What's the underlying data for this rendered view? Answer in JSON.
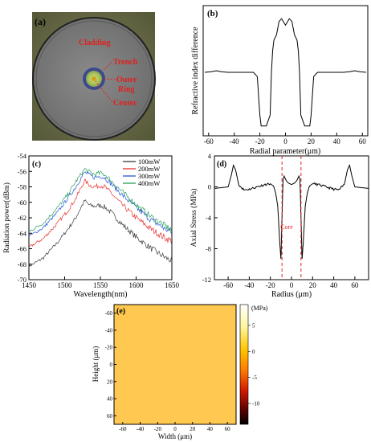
{
  "panels": {
    "a": {
      "label": "(a)",
      "annotations": [
        "Cladding",
        "Trench",
        "Outer",
        "Ring",
        "Center"
      ]
    },
    "b": {
      "label": "(b)",
      "xlabel": "Radial parameter(μm)",
      "ylabel": "Refractive index difference",
      "xticks": [
        "-60",
        "-40",
        "-20",
        "0",
        "20",
        "40",
        "60"
      ]
    },
    "c": {
      "label": "(c)",
      "xlabel": "Wavelength(nm)",
      "ylabel": "Radiation power(dBm)",
      "xticks": [
        "1450",
        "1500",
        "1550",
        "1600",
        "1650"
      ],
      "yticks": [
        "-54",
        "-56",
        "-58",
        "-60",
        "-62",
        "-64",
        "-66",
        "-68",
        "-70"
      ],
      "legend": [
        "100mW",
        "200mW",
        "300mW",
        "400mW"
      ]
    },
    "d": {
      "label": "(d)",
      "xlabel": "Radius (μm)",
      "ylabel": "Axial Stress (MPa)",
      "xticks": [
        "-60",
        "-40",
        "-20",
        "0",
        "20",
        "40",
        "60"
      ],
      "yticks": [
        "4",
        "0",
        "-4",
        "-8",
        "-12"
      ],
      "annotation": "Core"
    },
    "e": {
      "label": "(e)",
      "xlabel": "Width (μm)",
      "ylabel": "Height (μm)",
      "xticks": [
        "-60",
        "-40",
        "-20",
        "0",
        "20",
        "40",
        "60"
      ],
      "yticks": [
        "-60",
        "-40",
        "-20",
        "0",
        "20",
        "40",
        "60"
      ],
      "colorbar_unit": "(MPa)",
      "colorbar_ticks": [
        "5",
        "0",
        "-5",
        "-10"
      ]
    }
  },
  "colors": {
    "s100": "#3a3a3a",
    "s200": "#e8302c",
    "s300": "#2a55d8",
    "s400": "#28a05a",
    "annot": "#e22020"
  },
  "chart_data": [
    {
      "type": "line",
      "panel": "b",
      "xlabel": "Radial parameter(μm)",
      "ylabel": "Refractive index difference",
      "xlim": [
        -63,
        63
      ],
      "series": [
        {
          "x": [
            -63,
            -58,
            -54,
            -50,
            -45,
            -40,
            -35,
            -30,
            -25,
            -22,
            -20,
            -19,
            -18,
            -15,
            -12,
            -11,
            -10,
            -9,
            -7,
            -5,
            -3,
            0,
            3,
            5,
            7,
            9,
            10,
            11,
            12,
            15,
            18,
            19,
            20,
            22,
            25,
            30,
            35,
            40,
            45,
            50,
            54,
            58,
            63
          ],
          "y": [
            0.0,
            0.01,
            0.03,
            0.01,
            0.0,
            0.0,
            0.0,
            0.0,
            0.0,
            -0.08,
            -0.8,
            -1.0,
            -1.0,
            -1.0,
            -0.8,
            0.0,
            0.4,
            0.6,
            0.7,
            0.95,
            1.0,
            0.88,
            1.0,
            0.95,
            0.7,
            0.6,
            0.4,
            0.0,
            -0.8,
            -1.0,
            -1.0,
            -1.0,
            -0.8,
            -0.08,
            0.0,
            0.0,
            0.0,
            0.0,
            0.0,
            0.01,
            0.03,
            0.01,
            0.0
          ]
        }
      ]
    },
    {
      "type": "line",
      "panel": "c",
      "xlabel": "Wavelength(nm)",
      "ylabel": "Radiation power(dBm)",
      "xlim": [
        1450,
        1650
      ],
      "ylim": [
        -70,
        -54
      ],
      "x": [
        1450,
        1470,
        1490,
        1505,
        1515,
        1522,
        1528,
        1535,
        1542,
        1550,
        1556,
        1565,
        1580,
        1600,
        1620,
        1640,
        1650
      ],
      "series": [
        {
          "name": "100mW",
          "values": [
            -68.3,
            -67.2,
            -65.2,
            -63.4,
            -62.1,
            -60.8,
            -59.8,
            -60.4,
            -60.5,
            -60.4,
            -60.6,
            -61.3,
            -62.8,
            -64.5,
            -65.9,
            -67.1,
            -67.6
          ]
        },
        {
          "name": "200mW",
          "values": [
            -65.8,
            -64.7,
            -62.7,
            -61.0,
            -59.6,
            -58.3,
            -57.2,
            -57.8,
            -58.0,
            -57.8,
            -58.0,
            -58.8,
            -60.3,
            -62.0,
            -63.4,
            -64.6,
            -65.0
          ]
        },
        {
          "name": "300mW",
          "values": [
            -64.4,
            -63.3,
            -61.3,
            -59.4,
            -58.1,
            -57.0,
            -56.1,
            -56.5,
            -56.8,
            -56.6,
            -56.8,
            -57.6,
            -59.0,
            -60.7,
            -62.2,
            -63.4,
            -63.9
          ]
        },
        {
          "name": "400mW",
          "values": [
            -63.8,
            -62.7,
            -60.7,
            -58.9,
            -57.4,
            -56.5,
            -55.7,
            -56.1,
            -56.4,
            -56.2,
            -56.4,
            -57.2,
            -58.6,
            -60.3,
            -61.8,
            -63.0,
            -63.6
          ]
        }
      ]
    },
    {
      "type": "line",
      "panel": "d",
      "xlabel": "Radius (μm)",
      "ylabel": "Axial Stress (MPa)",
      "xlim": [
        -73,
        73
      ],
      "ylim": [
        -12,
        4
      ],
      "series": [
        {
          "x": [
            -73,
            -66,
            -60,
            -57,
            -55,
            -53,
            -50,
            -45,
            -40,
            -35,
            -30,
            -25,
            -20,
            -17,
            -15,
            -13,
            -12,
            -11,
            -10,
            -9,
            -8,
            -7,
            -5,
            -3,
            0,
            3,
            5,
            7,
            8,
            9,
            10,
            11,
            12,
            13,
            15,
            17,
            20,
            25,
            30,
            35,
            40,
            45,
            50,
            53,
            55,
            57,
            60,
            66,
            73
          ],
          "y": [
            -0.2,
            -0.1,
            0.0,
            1.5,
            2.8,
            2.2,
            0.3,
            -0.4,
            -0.3,
            -0.1,
            0.1,
            0.3,
            0.4,
            0.1,
            -0.8,
            -2.5,
            -5.0,
            -7.5,
            -9.3,
            -4.0,
            1.0,
            1.4,
            0.8,
            0.5,
            0.3,
            0.5,
            0.8,
            1.4,
            1.0,
            -4.0,
            -9.3,
            -7.5,
            -5.0,
            -2.5,
            -0.8,
            0.1,
            0.4,
            0.3,
            0.1,
            -0.1,
            -0.3,
            -0.4,
            0.3,
            2.2,
            2.8,
            1.5,
            0.0,
            -0.1,
            -0.2
          ]
        }
      ]
    }
  ]
}
